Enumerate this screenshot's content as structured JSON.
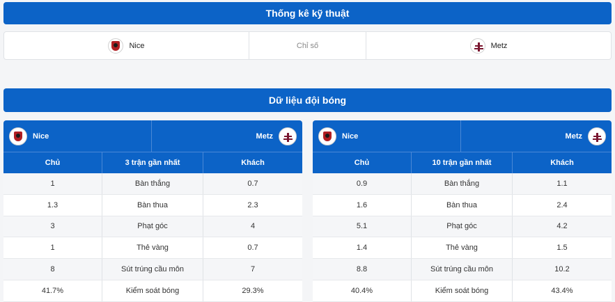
{
  "sections": {
    "technical_title": "Thống kê kỹ thuật",
    "team_data_title": "Dữ liệu đội bóng"
  },
  "compare": {
    "home": "Nice",
    "stat_label": "Chỉ số",
    "away": "Metz"
  },
  "left_panel": {
    "home": "Nice",
    "away": "Metz",
    "col_home": "Chủ",
    "col_label": "3 trận gần nhất",
    "col_away": "Khách",
    "rows": [
      {
        "home": "1",
        "label": "Bàn thắng",
        "away": "0.7"
      },
      {
        "home": "1.3",
        "label": "Bàn thua",
        "away": "2.3"
      },
      {
        "home": "3",
        "label": "Phạt góc",
        "away": "4"
      },
      {
        "home": "1",
        "label": "Thẻ vàng",
        "away": "0.7"
      },
      {
        "home": "8",
        "label": "Sút trúng cầu môn",
        "away": "7"
      },
      {
        "home": "41.7%",
        "label": "Kiểm soát bóng",
        "away": "29.3%"
      }
    ]
  },
  "right_panel": {
    "home": "Nice",
    "away": "Metz",
    "col_home": "Chủ",
    "col_label": "10 trận gần nhất",
    "col_away": "Khách",
    "rows": [
      {
        "home": "0.9",
        "label": "Bàn thắng",
        "away": "1.1"
      },
      {
        "home": "1.6",
        "label": "Bàn thua",
        "away": "2.4"
      },
      {
        "home": "5.1",
        "label": "Phạt góc",
        "away": "4.2"
      },
      {
        "home": "1.4",
        "label": "Thẻ vàng",
        "away": "1.5"
      },
      {
        "home": "8.8",
        "label": "Sút trúng cầu môn",
        "away": "10.2"
      },
      {
        "home": "40.4%",
        "label": "Kiểm soát bóng",
        "away": "43.4%"
      }
    ]
  },
  "icons": {
    "home_logo": "nice-crest-icon",
    "away_logo": "metz-crest-icon"
  },
  "colors": {
    "accent": "#0c63c7"
  }
}
